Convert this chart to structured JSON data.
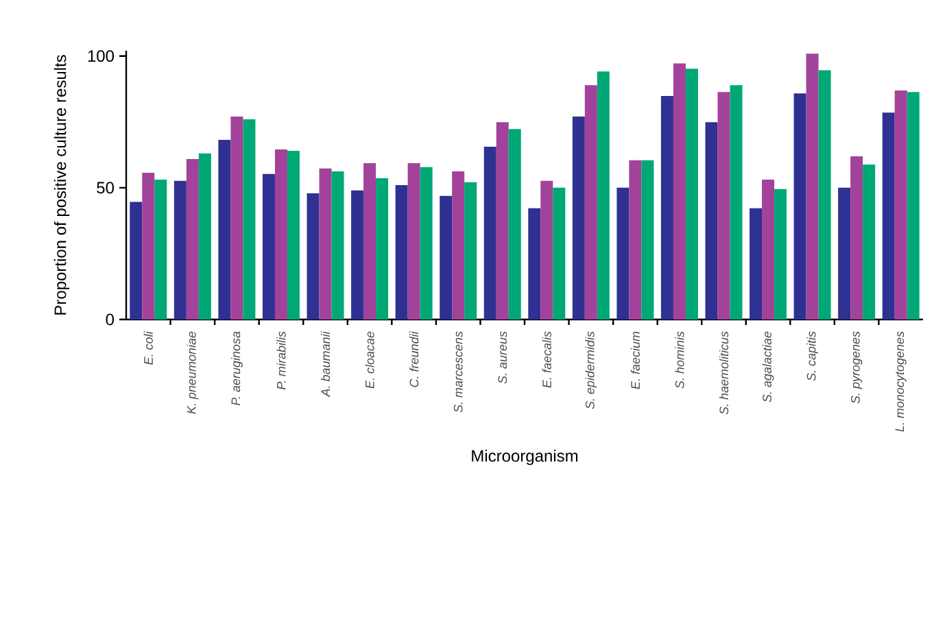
{
  "chart_data": {
    "type": "bar",
    "xlabel": "Microorganism",
    "ylabel": "Proportion of positive culture results",
    "categories": [
      "*E. coli*",
      "*K. pneumoniae*",
      "*P. aeruginosa*",
      "*P. mirabilis*",
      "*A. baumanii*",
      "*E. cloacae*",
      "*C. freundii*",
      "*S. marcescens*",
      "*S. aureus*",
      "*E. faecalis*",
      "*S. epidermidis*",
      "*E. faecium*",
      "*S. hominis*",
      "*S. haemoliticus*",
      "*S. agalactiae*",
      "*S. capitis*",
      "*S. pyrogenes*",
      "*L. monocytogenes*"
    ],
    "series": [
      {
        "color": "#2e3192",
        "values": [
          44.6,
          52.6,
          68.2,
          55.2,
          47.9,
          49,
          51,
          46.9,
          65.6,
          42.2,
          77,
          50,
          84.8,
          74.9,
          42.2,
          85.8,
          50,
          78.5
        ]
      },
      {
        "color": "#a3429a",
        "values": [
          55.7,
          60.9,
          77,
          64.5,
          57.3,
          59.3,
          59.3,
          56.2,
          74.9,
          52.6,
          88.9,
          60.4,
          97.2,
          86.3,
          53.1,
          100.9,
          61.9,
          86.9
        ]
      },
      {
        "color": "#00a875",
        "values": [
          53.1,
          63,
          76,
          64,
          56.2,
          53.6,
          57.8,
          52.1,
          72.3,
          50,
          94.1,
          60.4,
          95.2,
          88.9,
          49.5,
          94.6,
          58.8,
          86.3
        ]
      }
    ],
    "ylim": [
      0,
      102
    ],
    "yticks": [
      0,
      50,
      100
    ]
  }
}
